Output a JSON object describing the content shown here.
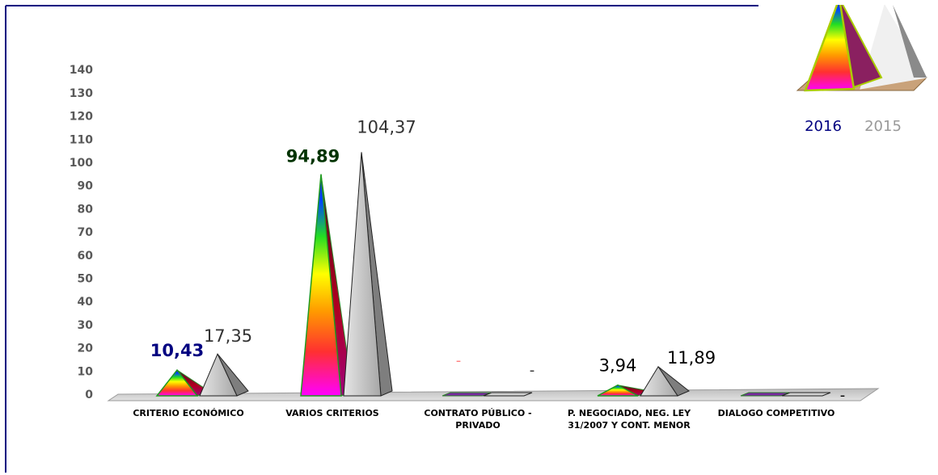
{
  "chart_data": {
    "type": "bar",
    "style": "3d-pyramid",
    "categories": [
      [
        "CRITERIO ECONÓMICO"
      ],
      [
        "VARIOS CRITERIOS"
      ],
      [
        "CONTRATO PÚBLICO -",
        "PRIVADO"
      ],
      [
        "P. NEGOCIADO, NEG. LEY",
        "31/2007 Y CONT. MENOR"
      ],
      [
        "DIALOGO COMPETITIVO"
      ]
    ],
    "series": [
      {
        "name": "2016",
        "values": [
          10.43,
          94.89,
          0,
          3.94,
          0
        ],
        "labels": [
          "10,43",
          "94,89",
          "-",
          "3,94",
          ""
        ],
        "label_colors": [
          "#000080",
          "#003300",
          "#ff8080",
          "#000000",
          "#000000"
        ],
        "color": "#000080"
      },
      {
        "name": "2015",
        "values": [
          17.35,
          104.37,
          0,
          11.89,
          0
        ],
        "labels": [
          "17,35",
          "104,37",
          "-",
          "11,89",
          "-"
        ],
        "label_colors": [
          "#333333",
          "#333333",
          "#333333",
          "#000000",
          "#000000"
        ],
        "color": "#999999"
      }
    ],
    "ylim": [
      0,
      140
    ],
    "yticks": [
      0,
      10,
      20,
      30,
      40,
      50,
      60,
      70,
      80,
      90,
      100,
      110,
      120,
      130,
      140
    ],
    "legend_position": "top-right",
    "frame_color": "#000080"
  }
}
